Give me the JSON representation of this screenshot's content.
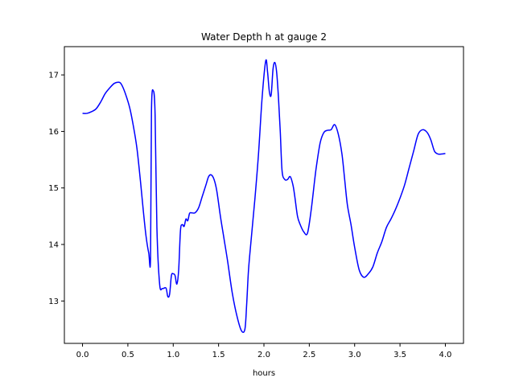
{
  "chart_data": {
    "type": "line",
    "title": "Water Depth h at gauge 2",
    "xlabel": "hours",
    "ylabel": "",
    "xlim": [
      -0.2,
      4.2
    ],
    "ylim": [
      12.25,
      17.5
    ],
    "x_ticks": [
      0.0,
      0.5,
      1.0,
      1.5,
      2.0,
      2.5,
      3.0,
      3.5,
      4.0
    ],
    "x_tick_labels": [
      "0.0",
      "0.5",
      "1.0",
      "1.5",
      "2.0",
      "2.5",
      "3.0",
      "3.5",
      "4.0"
    ],
    "y_ticks": [
      13,
      14,
      15,
      16,
      17
    ],
    "y_tick_labels": [
      "13",
      "14",
      "15",
      "16",
      "17"
    ],
    "grid": false,
    "series": [
      {
        "color": "#0000ff",
        "x": [
          0.0,
          0.05,
          0.1,
          0.15,
          0.2,
          0.25,
          0.3,
          0.35,
          0.4,
          0.43,
          0.47,
          0.52,
          0.56,
          0.6,
          0.64,
          0.67,
          0.7,
          0.73,
          0.75,
          0.76,
          0.78,
          0.8,
          0.82,
          0.85,
          0.88,
          0.92,
          0.94,
          0.96,
          0.98,
          1.0,
          1.02,
          1.04,
          1.06,
          1.08,
          1.1,
          1.12,
          1.14,
          1.16,
          1.18,
          1.2,
          1.24,
          1.28,
          1.32,
          1.36,
          1.39,
          1.42,
          1.45,
          1.48,
          1.52,
          1.56,
          1.6,
          1.65,
          1.7,
          1.75,
          1.79,
          1.81,
          1.83,
          1.86,
          1.9,
          1.94,
          1.98,
          2.02,
          2.04,
          2.06,
          2.08,
          2.1,
          2.12,
          2.14,
          2.16,
          2.18,
          2.2,
          2.23,
          2.26,
          2.29,
          2.32,
          2.34,
          2.37,
          2.4,
          2.44,
          2.48,
          2.52,
          2.56,
          2.58,
          2.62,
          2.66,
          2.7,
          2.74,
          2.78,
          2.82,
          2.86,
          2.89,
          2.92,
          2.96,
          3.0,
          3.05,
          3.1,
          3.15,
          3.2,
          3.25,
          3.3,
          3.35,
          3.4,
          3.45,
          3.5,
          3.55,
          3.6,
          3.65,
          3.7,
          3.75,
          3.8,
          3.84,
          3.88,
          3.92,
          3.96,
          4.0
        ],
        "y": [
          16.32,
          16.32,
          16.35,
          16.4,
          16.52,
          16.67,
          16.77,
          16.85,
          16.87,
          16.83,
          16.68,
          16.42,
          16.1,
          15.7,
          15.1,
          14.6,
          14.15,
          13.85,
          13.78,
          16.35,
          16.72,
          16.3,
          14.3,
          13.3,
          13.22,
          13.23,
          13.08,
          13.12,
          13.45,
          13.48,
          13.45,
          13.3,
          13.55,
          14.25,
          14.35,
          14.32,
          14.45,
          14.42,
          14.55,
          14.56,
          14.56,
          14.65,
          14.85,
          15.05,
          15.2,
          15.23,
          15.15,
          14.95,
          14.5,
          14.1,
          13.7,
          13.15,
          12.75,
          12.48,
          12.5,
          12.95,
          13.55,
          14.1,
          14.8,
          15.6,
          16.6,
          17.25,
          17.05,
          16.7,
          16.65,
          17.1,
          17.22,
          17.05,
          16.6,
          16.0,
          15.3,
          15.15,
          15.15,
          15.2,
          15.05,
          14.85,
          14.5,
          14.35,
          14.22,
          14.2,
          14.6,
          15.15,
          15.4,
          15.8,
          15.98,
          16.02,
          16.03,
          16.12,
          15.95,
          15.6,
          15.15,
          14.7,
          14.35,
          13.95,
          13.55,
          13.42,
          13.48,
          13.6,
          13.85,
          14.05,
          14.3,
          14.45,
          14.62,
          14.82,
          15.05,
          15.35,
          15.65,
          15.95,
          16.03,
          15.98,
          15.85,
          15.65,
          15.6,
          15.6,
          15.61
        ]
      }
    ]
  }
}
